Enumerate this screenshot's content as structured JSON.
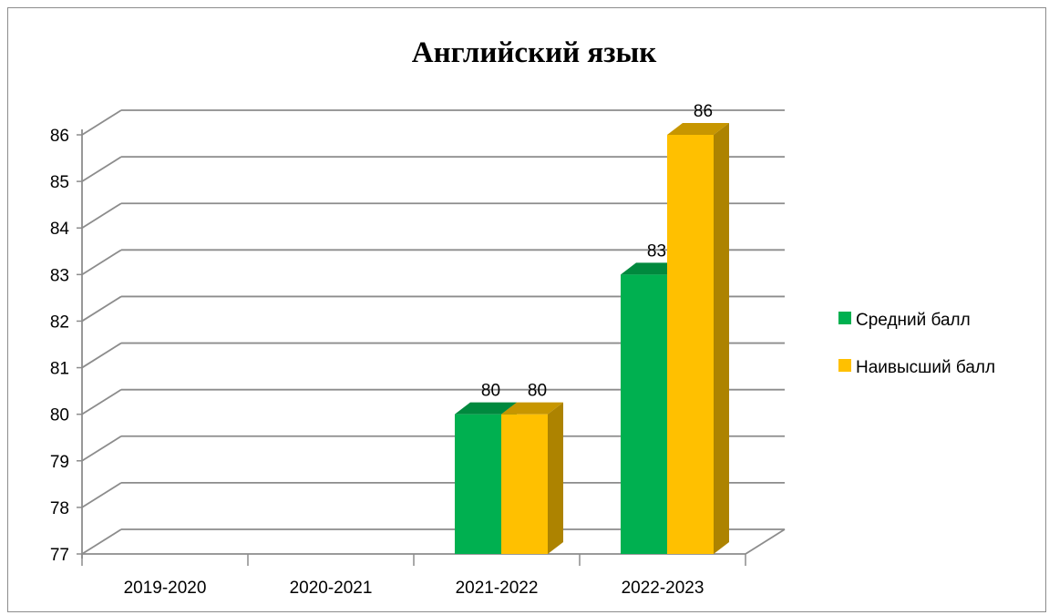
{
  "chart_data": {
    "type": "bar",
    "title": "Английский язык",
    "categories": [
      "2019-2020",
      "2020-2021",
      "2021-2022",
      "2022-2023"
    ],
    "series": [
      {
        "name": "Средний балл",
        "values": [
          null,
          null,
          80,
          83
        ],
        "color": "#00b050"
      },
      {
        "name": "Наивысший балл",
        "values": [
          null,
          null,
          80,
          86
        ],
        "color": "#ffc000"
      }
    ],
    "ylim": [
      77,
      86
    ],
    "yticks": [
      "77",
      "78",
      "79",
      "80",
      "81",
      "82",
      "83",
      "84",
      "85",
      "86"
    ],
    "grid": true,
    "legend_position": "right",
    "three_d": true
  }
}
